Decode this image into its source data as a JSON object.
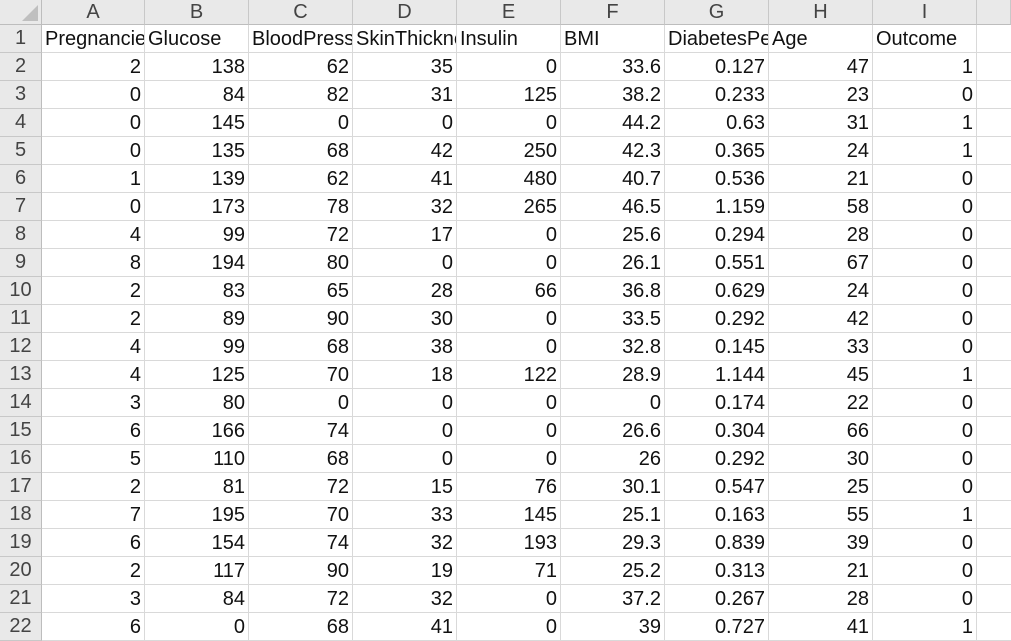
{
  "columns": [
    "A",
    "B",
    "C",
    "D",
    "E",
    "F",
    "G",
    "H",
    "I"
  ],
  "row_numbers": [
    "1",
    "2",
    "3",
    "4",
    "5",
    "6",
    "7",
    "8",
    "9",
    "10",
    "11",
    "12",
    "13",
    "14",
    "15",
    "16",
    "17",
    "18",
    "19",
    "20",
    "21",
    "22"
  ],
  "header_row": [
    "Pregnancies",
    "Glucose",
    "BloodPressure",
    "SkinThickness",
    "Insulin",
    "BMI",
    "DiabetesPedigreeFunction",
    "Age",
    "Outcome"
  ],
  "rows": [
    [
      "2",
      "138",
      "62",
      "35",
      "0",
      "33.6",
      "0.127",
      "47",
      "1"
    ],
    [
      "0",
      "84",
      "82",
      "31",
      "125",
      "38.2",
      "0.233",
      "23",
      "0"
    ],
    [
      "0",
      "145",
      "0",
      "0",
      "0",
      "44.2",
      "0.63",
      "31",
      "1"
    ],
    [
      "0",
      "135",
      "68",
      "42",
      "250",
      "42.3",
      "0.365",
      "24",
      "1"
    ],
    [
      "1",
      "139",
      "62",
      "41",
      "480",
      "40.7",
      "0.536",
      "21",
      "0"
    ],
    [
      "0",
      "173",
      "78",
      "32",
      "265",
      "46.5",
      "1.159",
      "58",
      "0"
    ],
    [
      "4",
      "99",
      "72",
      "17",
      "0",
      "25.6",
      "0.294",
      "28",
      "0"
    ],
    [
      "8",
      "194",
      "80",
      "0",
      "0",
      "26.1",
      "0.551",
      "67",
      "0"
    ],
    [
      "2",
      "83",
      "65",
      "28",
      "66",
      "36.8",
      "0.629",
      "24",
      "0"
    ],
    [
      "2",
      "89",
      "90",
      "30",
      "0",
      "33.5",
      "0.292",
      "42",
      "0"
    ],
    [
      "4",
      "99",
      "68",
      "38",
      "0",
      "32.8",
      "0.145",
      "33",
      "0"
    ],
    [
      "4",
      "125",
      "70",
      "18",
      "122",
      "28.9",
      "1.144",
      "45",
      "1"
    ],
    [
      "3",
      "80",
      "0",
      "0",
      "0",
      "0",
      "0.174",
      "22",
      "0"
    ],
    [
      "6",
      "166",
      "74",
      "0",
      "0",
      "26.6",
      "0.304",
      "66",
      "0"
    ],
    [
      "5",
      "110",
      "68",
      "0",
      "0",
      "26",
      "0.292",
      "30",
      "0"
    ],
    [
      "2",
      "81",
      "72",
      "15",
      "76",
      "30.1",
      "0.547",
      "25",
      "0"
    ],
    [
      "7",
      "195",
      "70",
      "33",
      "145",
      "25.1",
      "0.163",
      "55",
      "1"
    ],
    [
      "6",
      "154",
      "74",
      "32",
      "193",
      "29.3",
      "0.839",
      "39",
      "0"
    ],
    [
      "2",
      "117",
      "90",
      "19",
      "71",
      "25.2",
      "0.313",
      "21",
      "0"
    ],
    [
      "3",
      "84",
      "72",
      "32",
      "0",
      "37.2",
      "0.267",
      "28",
      "0"
    ],
    [
      "6",
      "0",
      "68",
      "41",
      "0",
      "39",
      "0.727",
      "41",
      "1"
    ]
  ]
}
